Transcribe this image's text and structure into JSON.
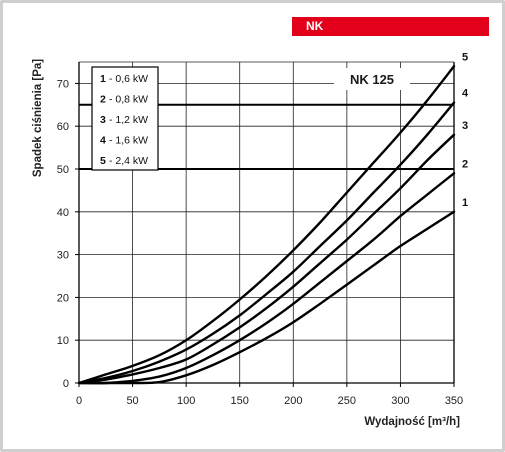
{
  "brand_tab": {
    "label": "NK",
    "color": "#e3001b"
  },
  "chart_data": {
    "type": "line",
    "title": "NK 125",
    "xlabel": "Wydajność [m³/h]",
    "ylabel": "Spadek ciśnienia [Pa]",
    "xlim": [
      0,
      350
    ],
    "ylim": [
      0,
      75
    ],
    "x_ticks": [
      0,
      50,
      100,
      150,
      200,
      250,
      300,
      350
    ],
    "y_ticks": [
      0,
      10,
      20,
      30,
      40,
      50,
      60,
      70
    ],
    "grid": true,
    "line_color": "#000000",
    "legend": {
      "placement": "top-left",
      "entries": [
        {
          "num": "1",
          "text": "- 0,6  kW"
        },
        {
          "num": "2",
          "text": "- 0,8  kW"
        },
        {
          "num": "3",
          "text": "- 1,2  kW"
        },
        {
          "num": "4",
          "text": "- 1,6  kW"
        },
        {
          "num": "5",
          "text": "- 2,4  kW"
        }
      ]
    },
    "series": [
      {
        "name": "1",
        "x": [
          0,
          25,
          50,
          75,
          100,
          125,
          150,
          175,
          200,
          225,
          250,
          275,
          300,
          325,
          350
        ],
        "y": [
          0,
          0,
          0,
          0.2,
          1.8,
          4.2,
          7.2,
          10.5,
          14.2,
          18.5,
          23,
          27.5,
          32,
          36,
          40
        ]
      },
      {
        "name": "2",
        "x": [
          0,
          25,
          50,
          75,
          100,
          125,
          150,
          175,
          200,
          225,
          250,
          275,
          300,
          325,
          350
        ],
        "y": [
          0,
          0,
          0.5,
          1.5,
          3.5,
          6.5,
          10,
          14,
          18.5,
          23.5,
          28.5,
          33.5,
          39,
          44,
          49
        ]
      },
      {
        "name": "3",
        "x": [
          0,
          25,
          50,
          75,
          100,
          125,
          150,
          175,
          200,
          225,
          250,
          275,
          300,
          325,
          350
        ],
        "y": [
          0,
          0.8,
          2,
          3.5,
          5.5,
          9,
          13,
          17.5,
          22.5,
          28,
          33.5,
          39.5,
          45.5,
          52,
          58
        ]
      },
      {
        "name": "4",
        "x": [
          0,
          25,
          50,
          75,
          100,
          125,
          150,
          175,
          200,
          225,
          250,
          275,
          300,
          325,
          350
        ],
        "y": [
          0,
          1.2,
          2.8,
          5,
          7.8,
          11.5,
          15.8,
          20.8,
          26,
          32,
          38,
          44.5,
          51,
          58,
          65.5
        ]
      },
      {
        "name": "5",
        "x": [
          0,
          25,
          50,
          75,
          100,
          125,
          150,
          175,
          200,
          225,
          250,
          275,
          300,
          325,
          350
        ],
        "y": [
          0,
          2,
          4,
          6.5,
          10,
          14.5,
          19.5,
          25,
          31,
          37.5,
          44.5,
          51.5,
          58.5,
          66,
          74
        ]
      }
    ],
    "reference_lines": [
      65,
      50
    ]
  }
}
